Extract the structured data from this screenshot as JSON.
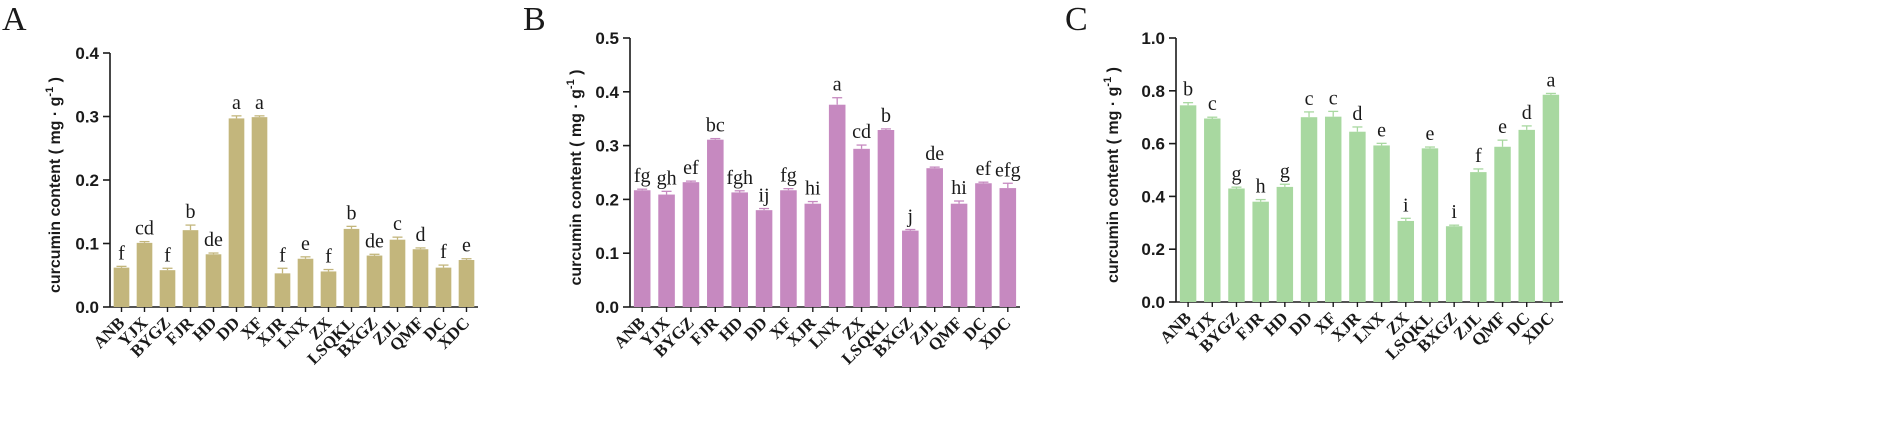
{
  "figure_title": "",
  "chart_data": [
    {
      "panel": "A",
      "type": "bar",
      "ylabel": "curcumin content ( mg · g",
      "ylabel_sup": "-1",
      "ylabel_end": " )",
      "ylim": [
        0,
        0.4
      ],
      "yticks": [
        "0.0",
        "0.1",
        "0.2",
        "0.3",
        "0.4"
      ],
      "bar_color": "#c3b67c",
      "categories": [
        "ANB",
        "YJX",
        "BYGZ",
        "FJR",
        "HD",
        "DD",
        "XF",
        "XJR",
        "LNX",
        "ZX",
        "LSQKL",
        "BXGZ",
        "ZJL",
        "QMF",
        "DC",
        "XDC"
      ],
      "values": [
        0.062,
        0.101,
        0.058,
        0.121,
        0.083,
        0.297,
        0.299,
        0.053,
        0.076,
        0.056,
        0.123,
        0.081,
        0.106,
        0.091,
        0.062,
        0.074
      ],
      "errors": [
        0.002,
        0.002,
        0.003,
        0.008,
        0.002,
        0.004,
        0.002,
        0.008,
        0.003,
        0.003,
        0.004,
        0.002,
        0.004,
        0.002,
        0.004,
        0.002
      ],
      "letters": [
        "f",
        "cd",
        "f",
        "b",
        "de",
        "a",
        "a",
        "f",
        "e",
        "f",
        "b",
        "de",
        "c",
        "d",
        "f",
        "e"
      ]
    },
    {
      "panel": "B",
      "type": "bar",
      "ylabel": "curcumin content ( mg · g",
      "ylabel_sup": "-1",
      "ylabel_end": " )",
      "ylim": [
        0,
        0.5
      ],
      "yticks": [
        "0.0",
        "0.1",
        "0.2",
        "0.3",
        "0.4",
        "0.5"
      ],
      "bar_color": "#c689c0",
      "categories": [
        "ANB",
        "YJX",
        "BYGZ",
        "FJR",
        "HD",
        "DD",
        "XF",
        "XJR",
        "LNX",
        "ZX",
        "LSQKL",
        "BXGZ",
        "ZJL",
        "QMF",
        "DC",
        "XDC"
      ],
      "values": [
        0.217,
        0.209,
        0.232,
        0.311,
        0.213,
        0.18,
        0.217,
        0.192,
        0.376,
        0.294,
        0.329,
        0.142,
        0.258,
        0.192,
        0.23,
        0.221
      ],
      "errors": [
        0.002,
        0.006,
        0.002,
        0.002,
        0.003,
        0.003,
        0.003,
        0.004,
        0.013,
        0.007,
        0.002,
        0.002,
        0.002,
        0.005,
        0.002,
        0.009
      ],
      "letters": [
        "fg",
        "gh",
        "ef",
        "bc",
        "fgh",
        "ij",
        "fg",
        "hi",
        "a",
        "cd",
        "b",
        "j",
        "de",
        "hi",
        "ef",
        "efg"
      ]
    },
    {
      "panel": "C",
      "type": "bar",
      "ylabel": "curcumin content ( mg · g",
      "ylabel_sup": "-1",
      "ylabel_end": " )",
      "ylim": [
        0,
        1.0
      ],
      "yticks": [
        "0.0",
        "0.2",
        "0.4",
        "0.6",
        "0.8",
        "1.0"
      ],
      "bar_color": "#a8d8a0",
      "categories": [
        "ANB",
        "YJX",
        "BYGZ",
        "FJR",
        "HD",
        "DD",
        "XF",
        "XJR",
        "LNX",
        "ZX",
        "LSQKL",
        "BXGZ",
        "ZJL",
        "QMF",
        "DC",
        "XDC"
      ],
      "values": [
        0.745,
        0.695,
        0.43,
        0.38,
        0.436,
        0.7,
        0.702,
        0.645,
        0.593,
        0.307,
        0.582,
        0.287,
        0.492,
        0.588,
        0.652,
        0.785
      ],
      "errors": [
        0.01,
        0.005,
        0.005,
        0.008,
        0.01,
        0.02,
        0.02,
        0.018,
        0.008,
        0.01,
        0.005,
        0.004,
        0.012,
        0.025,
        0.015,
        0.005
      ],
      "letters": [
        "b",
        "c",
        "g",
        "h",
        "g",
        "c",
        "c",
        "d",
        "e",
        "i",
        "e",
        "i",
        "f",
        "e",
        "d",
        "a"
      ]
    }
  ]
}
